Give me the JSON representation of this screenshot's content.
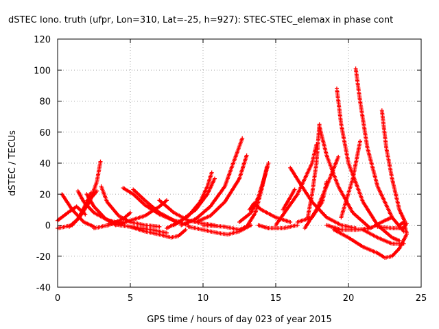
{
  "chart_data": {
    "type": "scatter",
    "title": "dSTEC Iono. truth (ufpr, Lon=310, Lat=-25, h=927): STEC-STEC_elemax in phase cont",
    "xlabel": "GPS time / hours of day 023 of year 2015",
    "ylabel": "dSTEC  / TECUs",
    "xlim": [
      0,
      25
    ],
    "ylim": [
      -40,
      120
    ],
    "x_ticks": [
      0,
      5,
      10,
      15,
      20,
      25
    ],
    "y_ticks": [
      -40,
      -20,
      0,
      20,
      40,
      60,
      80,
      100,
      120
    ],
    "x_tick_labels": [
      "0",
      "5",
      "10",
      "15",
      "20",
      "25"
    ],
    "y_tick_labels": [
      "-40",
      "-20",
      "0",
      "20",
      "40",
      "60",
      "80",
      "100",
      "120"
    ],
    "grid": true,
    "marker": "plus",
    "color": "#ff0000",
    "series": [
      {
        "x": [
          0.3,
          1.0,
          1.8,
          2.5
        ],
        "y": [
          20,
          10,
          2,
          -1
        ]
      },
      {
        "x": [
          0.0,
          0.7,
          1.3,
          1.9
        ],
        "y": [
          3,
          8,
          12,
          7
        ]
      },
      {
        "x": [
          0.0,
          0.5,
          1.0
        ],
        "y": [
          -2,
          -1,
          0
        ]
      },
      {
        "x": [
          0.8,
          1.4,
          2.0,
          2.7
        ],
        "y": [
          -1,
          4,
          14,
          22
        ]
      },
      {
        "x": [
          1.4,
          1.8,
          2.5,
          3.5,
          4.5
        ],
        "y": [
          22,
          15,
          8,
          3,
          1
        ]
      },
      {
        "x": [
          1.0,
          1.5,
          2.0,
          2.3
        ],
        "y": [
          0,
          5,
          15,
          21
        ]
      },
      {
        "x": [
          2.0,
          2.5,
          3.3,
          4.0
        ],
        "y": [
          20,
          12,
          4,
          1
        ]
      },
      {
        "x": [
          1.5,
          2.2,
          2.7,
          2.95
        ],
        "y": [
          5,
          15,
          28,
          41
        ]
      },
      {
        "x": [
          3.0,
          3.4,
          4.2,
          5.0,
          6.0,
          7.0
        ],
        "y": [
          25,
          15,
          6,
          2,
          0,
          -1
        ]
      },
      {
        "x": [
          2.5,
          3.5,
          4.5,
          5.0
        ],
        "y": [
          -2,
          0,
          4,
          8
        ]
      },
      {
        "x": [
          4.5,
          5.2,
          6.0,
          7.0,
          8.0,
          8.5
        ],
        "y": [
          24,
          20,
          13,
          7,
          3,
          2
        ]
      },
      {
        "x": [
          5.2,
          6.0,
          7.0,
          8.2,
          9.0
        ],
        "y": [
          23,
          16,
          8,
          2,
          0
        ]
      },
      {
        "x": [
          4.0,
          5.0,
          6.0,
          7.0,
          7.5
        ],
        "y": [
          0,
          3,
          6,
          12,
          16
        ]
      },
      {
        "x": [
          7.0,
          8.0,
          9.0,
          10.0,
          10.8
        ],
        "y": [
          16,
          8,
          3,
          1,
          0
        ]
      },
      {
        "x": [
          5.0,
          6.0,
          7.0,
          7.8,
          8.3,
          8.8
        ],
        "y": [
          -1,
          -4,
          -6,
          -8,
          -7,
          -3
        ]
      },
      {
        "x": [
          3.5,
          5.0,
          6.5,
          7.5
        ],
        "y": [
          1,
          -1,
          -3,
          -5
        ]
      },
      {
        "x": [
          8.0,
          9.0,
          9.8,
          10.3,
          10.6
        ],
        "y": [
          0,
          6,
          15,
          25,
          34
        ]
      },
      {
        "x": [
          7.5,
          8.5,
          9.5,
          10.3,
          10.8
        ],
        "y": [
          -2,
          3,
          10,
          20,
          30
        ]
      },
      {
        "x": [
          8.5,
          9.5,
          10.5,
          11.5,
          12.0,
          12.7
        ],
        "y": [
          0,
          4,
          12,
          25,
          38,
          56
        ]
      },
      {
        "x": [
          9.5,
          10.5,
          11.5,
          12.5,
          13.0
        ],
        "y": [
          2,
          6,
          15,
          30,
          45
        ]
      },
      {
        "x": [
          9.0,
          10.0,
          11.0,
          11.7,
          12.5,
          13.3
        ],
        "y": [
          -1,
          -3,
          -5,
          -6,
          -4,
          0
        ]
      },
      {
        "x": [
          10.0,
          11.5,
          12.5,
          13.2
        ],
        "y": [
          0,
          -1,
          -3,
          0
        ]
      },
      {
        "x": [
          12.5,
          13.3,
          13.8,
          14.2,
          14.5
        ],
        "y": [
          2,
          8,
          18,
          30,
          40
        ]
      },
      {
        "x": [
          13.0,
          13.6,
          14.0,
          14.4
        ],
        "y": [
          -1,
          8,
          22,
          38
        ]
      },
      {
        "x": [
          13.2,
          13.5,
          14.0,
          15.0,
          16.0
        ],
        "y": [
          10,
          14,
          10,
          5,
          2
        ]
      },
      {
        "x": [
          13.8,
          14.5,
          15.5,
          16.5
        ],
        "y": [
          0,
          -2,
          -2,
          0
        ]
      },
      {
        "x": [
          15.5,
          16.0,
          16.3
        ],
        "y": [
          10,
          18,
          23
        ]
      },
      {
        "x": [
          16.0,
          16.8,
          17.5,
          18.5,
          19.5,
          20.5
        ],
        "y": [
          37,
          25,
          15,
          5,
          0,
          -2
        ]
      },
      {
        "x": [
          15.0,
          16.5,
          17.5,
          17.8
        ],
        "y": [
          0,
          20,
          40,
          52
        ]
      },
      {
        "x": [
          17.2,
          17.5,
          17.8,
          18.0
        ],
        "y": [
          5,
          20,
          40,
          65
        ]
      },
      {
        "x": [
          18.0,
          18.5,
          19.3,
          20.3,
          21.5
        ],
        "y": [
          64,
          45,
          25,
          8,
          -2
        ]
      },
      {
        "x": [
          16.5,
          17.5,
          18.2,
          18.5
        ],
        "y": [
          2,
          5,
          15,
          28
        ]
      },
      {
        "x": [
          17.0,
          17.8,
          18.5,
          19.3
        ],
        "y": [
          -2,
          10,
          25,
          44
        ]
      },
      {
        "x": [
          19.2,
          19.5,
          20.0,
          21.0,
          22.0,
          23.0,
          23.5
        ],
        "y": [
          88,
          65,
          40,
          15,
          0,
          -8,
          -10
        ]
      },
      {
        "x": [
          20.5,
          20.8,
          21.3,
          22.0,
          23.0,
          23.8
        ],
        "y": [
          101,
          80,
          50,
          25,
          5,
          -4
        ]
      },
      {
        "x": [
          19.5,
          20.3,
          20.8
        ],
        "y": [
          5,
          30,
          54
        ]
      },
      {
        "x": [
          22.3,
          22.6,
          23.0,
          23.5,
          23.9
        ],
        "y": [
          74,
          50,
          30,
          10,
          2
        ]
      },
      {
        "x": [
          18.5,
          19.5,
          20.5,
          21.5,
          22.5,
          23.0
        ],
        "y": [
          0,
          -3,
          -3,
          -2,
          3,
          5
        ]
      },
      {
        "x": [
          19.0,
          20.0,
          21.0,
          22.0,
          22.5,
          23.0,
          23.5,
          24.0
        ],
        "y": [
          -3,
          -8,
          -14,
          -18,
          -21,
          -20,
          -15,
          -6
        ]
      },
      {
        "x": [
          21.0,
          22.0,
          23.0,
          23.8
        ],
        "y": [
          -3,
          -8,
          -12,
          -12
        ]
      },
      {
        "x": [
          22.0,
          23.0,
          23.8,
          24.0
        ],
        "y": [
          -1,
          -2,
          -2,
          1
        ]
      },
      {
        "x": [
          23.5,
          23.8,
          24.0
        ],
        "y": [
          0,
          2,
          -5
        ]
      }
    ]
  }
}
